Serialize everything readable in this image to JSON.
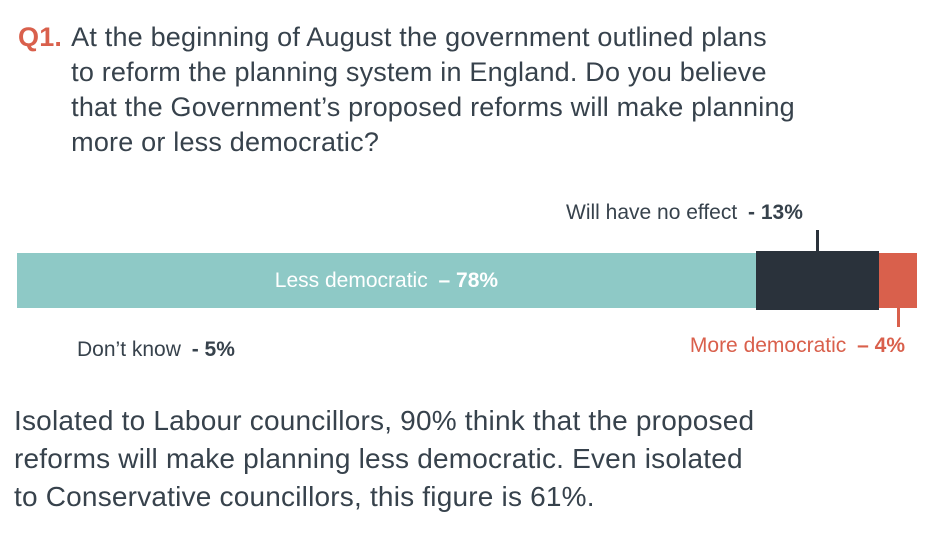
{
  "colors": {
    "orange": "#d9604c",
    "teal": "#8ec9c6",
    "dark": "#2a323b",
    "text": "#37424c"
  },
  "question": {
    "number": "Q1.",
    "lines": [
      "At the beginning of August the government outlined plans",
      "to reform the planning system in England. Do you believe",
      "that the Government’s proposed reforms will make planning",
      "more or less democratic?"
    ]
  },
  "chart_data": {
    "type": "bar",
    "variant": "horizontal-stacked",
    "unit": "%",
    "categories": [
      "Less democratic",
      "Will have no effect",
      "More democratic",
      "Don’t know"
    ],
    "values": [
      78,
      13,
      4,
      5
    ],
    "segments": [
      {
        "label": "Less democratic",
        "value": 78,
        "color": "#8ec9c6",
        "width_pct": 82.1
      },
      {
        "label": "Will have no effect",
        "value": 13,
        "color": "#2a323b",
        "width_pct": 13.7
      },
      {
        "label": "More democratic",
        "value": 4,
        "color": "#d9604c",
        "width_pct": 4.2
      }
    ],
    "excluded_from_bar": [
      {
        "label": "Don’t know",
        "value": 5
      }
    ],
    "legend_position": "none",
    "axes": "none"
  },
  "labels": {
    "no_effect": {
      "text": "Will have no effect",
      "value": "- 13%"
    },
    "less_dem": {
      "text": "Less democratic",
      "value": "– 78%"
    },
    "dont_know": {
      "text": "Don’t know",
      "value": "- 5%"
    },
    "more_dem": {
      "text": "More democratic",
      "value": "– 4%"
    }
  },
  "footnote": {
    "lines": [
      "Isolated to Labour councillors, 90% think that the proposed",
      "reforms will make planning less democratic. Even isolated",
      "to Conservative councillors, this figure is 61%."
    ]
  }
}
